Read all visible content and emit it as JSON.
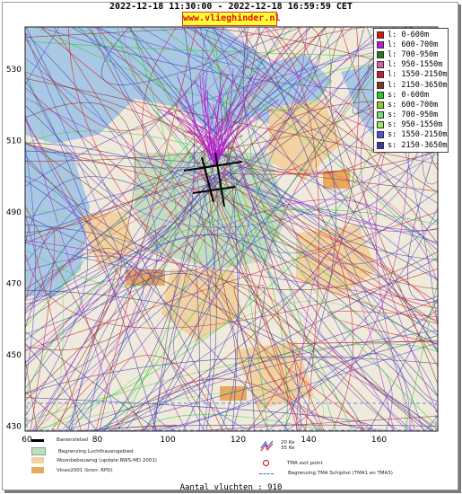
{
  "header": {
    "title": "2022-12-18 11:30:00 - 2022-12-18 16:59:59 CET",
    "site": "www.vlieghinder.nl"
  },
  "map": {
    "y_ticks": [
      "530",
      "510",
      "490",
      "470",
      "450",
      "430"
    ],
    "x_ticks": [
      "60",
      "80",
      "100",
      "120",
      "140",
      "160"
    ],
    "colors": {
      "water": "#a8c8e4",
      "land": "#f0eadc",
      "airport": "#c4dcc0",
      "urban": "#f2d2a0"
    }
  },
  "legend": {
    "items": [
      {
        "label": "l: 0-600m",
        "color": "#e01010"
      },
      {
        "label": "l: 600-700m",
        "color": "#b020d0"
      },
      {
        "label": "l: 700-950m",
        "color": "#208020"
      },
      {
        "label": "l: 950-1550m",
        "color": "#e060a0"
      },
      {
        "label": "l: 1550-2150m",
        "color": "#c02030"
      },
      {
        "label": "l: 2150-3650m",
        "color": "#8a3020"
      },
      {
        "label": "s: 0-600m",
        "color": "#20d020"
      },
      {
        "label": "s: 600-700m",
        "color": "#90d020"
      },
      {
        "label": "s: 700-950m",
        "color": "#70e070"
      },
      {
        "label": "s: 950-1550m",
        "color": "#a0e860"
      },
      {
        "label": "s: 1550-2150m",
        "color": "#5050d0"
      },
      {
        "label": "s: 2150-3650m",
        "color": "#3a3aa0"
      }
    ]
  },
  "bottom_legend": {
    "runway": "Banenstelsel",
    "airport_boundary": "Begrenzing Luchthavengebied",
    "housing": "Woonbebouwing (update RWS-MD 2001)",
    "vinex": "Vinex2001 (bron: RPD)",
    "ke_label_1": "20 Ke",
    "ke_label_2": "35 Ke",
    "tma_exit": "TMA exit point",
    "tma_boundary": "Begrenzing TMA Schiphol  (TMA1 en TMA3)"
  },
  "footer": {
    "count": "Aantal vluchten : 910"
  }
}
